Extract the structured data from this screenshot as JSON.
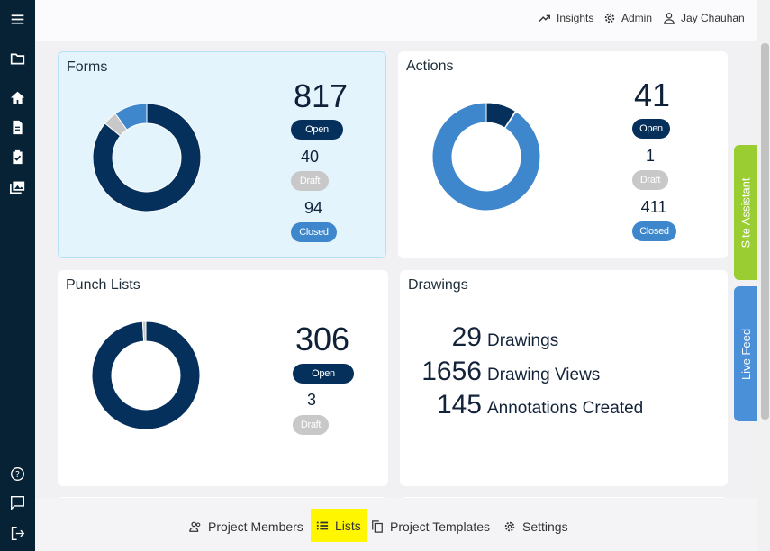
{
  "topbar": {
    "insights_label": "Insights",
    "admin_label": "Admin",
    "user_name": "Jay Chauhan"
  },
  "forms": {
    "title": "Forms",
    "open_count": "817",
    "open_label": "Open",
    "draft_count": "40",
    "draft_label": "Draft",
    "closed_count": "94",
    "closed_label": "Closed",
    "donut": {
      "open": 817,
      "draft": 40,
      "closed": 94
    }
  },
  "actions": {
    "title": "Actions",
    "open_count": "41",
    "open_label": "Open",
    "draft_count": "1",
    "draft_label": "Draft",
    "closed_count": "411",
    "closed_label": "Closed",
    "donut": {
      "open": 41,
      "draft": 1,
      "closed": 411
    }
  },
  "punch_lists": {
    "title": "Punch Lists",
    "open_count": "306",
    "open_label": "Open",
    "draft_count": "3",
    "draft_label": "Draft",
    "donut": {
      "open": 306,
      "draft": 3
    }
  },
  "drawings": {
    "title": "Drawings",
    "stats": [
      {
        "value": "29",
        "label": "Drawings"
      },
      {
        "value": "1656",
        "label": "Drawing Views"
      },
      {
        "value": "145",
        "label": "Annotations Created"
      }
    ]
  },
  "side_tabs": {
    "site_assistant": "Site Assistant",
    "live_feed": "Live Feed"
  },
  "bottom_nav": {
    "project_members": "Project Members",
    "lists": "Lists",
    "project_templates": "Project Templates",
    "settings": "Settings"
  },
  "colors": {
    "open": "#06305c",
    "draft": "#c8c8c8",
    "closed": "#3f87cc",
    "sidebar": "#072235",
    "site_assistant": "#9acd32",
    "live_feed": "#4a90d9",
    "highlight": "#fff600"
  },
  "icons": [
    "menu-icon",
    "folder-icon",
    "home-icon",
    "document-icon",
    "clipboard-check-icon",
    "images-icon",
    "help-icon",
    "chat-icon",
    "logout-icon",
    "trending-up-icon",
    "gear-icon",
    "user-icon",
    "users-icon",
    "list-icon",
    "copy-icon"
  ]
}
